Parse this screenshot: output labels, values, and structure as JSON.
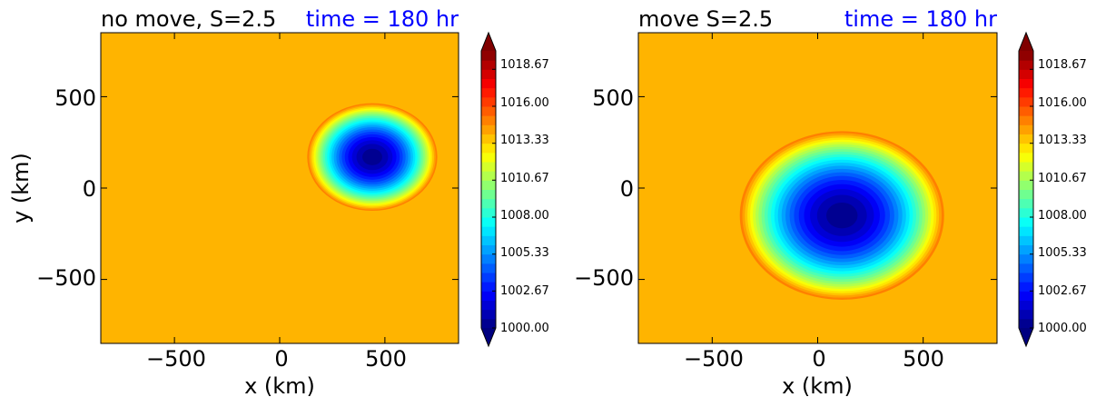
{
  "chart_data": [
    {
      "type": "heatmap",
      "title_left": "no move, S=2.5",
      "title_right": "time = 180 hr",
      "xlabel": "x (km)",
      "ylabel": "y (km)",
      "xlim": [
        -850,
        850
      ],
      "ylim": [
        -850,
        850
      ],
      "xticks": [
        -500,
        0,
        500
      ],
      "yticks": [
        -500,
        0,
        500
      ],
      "xtick_labels": [
        "−500",
        "0",
        "500"
      ],
      "ytick_labels": [
        "−500",
        "0",
        "500"
      ],
      "background_pressure": 1015.2,
      "low_center": [
        440,
        170
      ],
      "low_central_pressure": 999.5,
      "low_radius": 300,
      "colorbar": {
        "min": 1000.0,
        "max": 1020.0,
        "ticks": [
          "1000.00",
          "1002.67",
          "1005.33",
          "1008.00",
          "1010.67",
          "1013.33",
          "1016.00",
          "1018.67"
        ],
        "tick_values": [
          1000.0,
          1002.67,
          1005.33,
          1008.0,
          1010.67,
          1013.33,
          1016.0,
          1018.67
        ]
      }
    },
    {
      "type": "heatmap",
      "title_left": "move S=2.5",
      "title_right": "time = 180 hr",
      "xlabel": "x (km)",
      "ylabel": "",
      "xlim": [
        -850,
        850
      ],
      "ylim": [
        -850,
        850
      ],
      "xticks": [
        -500,
        0,
        500
      ],
      "yticks": [
        -500,
        0,
        500
      ],
      "xtick_labels": [
        "−500",
        "0",
        "500"
      ],
      "ytick_labels": [
        "−500",
        "0",
        "500"
      ],
      "background_pressure": 1015.2,
      "low_center": [
        115,
        -150
      ],
      "low_central_pressure": 999.5,
      "low_radius": 470,
      "colorbar": {
        "min": 1000.0,
        "max": 1020.0,
        "ticks": [
          "1000.00",
          "1002.67",
          "1005.33",
          "1008.00",
          "1010.67",
          "1013.33",
          "1016.00",
          "1018.67"
        ],
        "tick_values": [
          1000.0,
          1002.67,
          1005.33,
          1008.0,
          1010.67,
          1013.33,
          1016.0,
          1018.67
        ]
      }
    }
  ],
  "colors": {
    "title_right": "#0000ff",
    "text": "#000000",
    "colormap": "jet"
  }
}
